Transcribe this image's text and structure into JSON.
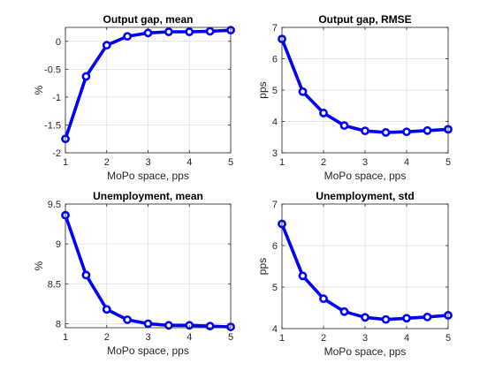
{
  "chart_data": [
    {
      "type": "line",
      "title": "Output gap, mean",
      "xlabel": "MoPo space, pps",
      "ylabel": "%",
      "xlim": [
        1,
        5
      ],
      "ylim": [
        -2,
        0.25
      ],
      "xticks": [
        1,
        2,
        3,
        4,
        5
      ],
      "yticks": [
        -2,
        -1.5,
        -1,
        -0.5,
        0
      ],
      "ytick_labels": [
        "-2",
        "-1.5",
        "-1",
        "-0.5",
        "0"
      ],
      "grid": true,
      "color": "#0000ff",
      "x": [
        1,
        1.5,
        2,
        2.5,
        3,
        3.5,
        4,
        4.5,
        5
      ],
      "values": [
        -1.75,
        -0.63,
        -0.07,
        0.09,
        0.15,
        0.17,
        0.17,
        0.18,
        0.2
      ]
    },
    {
      "type": "line",
      "title": "Output gap, RMSE",
      "xlabel": "MoPo space, pps",
      "ylabel": "pps",
      "xlim": [
        1,
        5
      ],
      "ylim": [
        3,
        7
      ],
      "xticks": [
        1,
        2,
        3,
        4,
        5
      ],
      "yticks": [
        3,
        4,
        5,
        6,
        7
      ],
      "ytick_labels": [
        "3",
        "4",
        "5",
        "6",
        "7"
      ],
      "grid": true,
      "color": "#0000ff",
      "x": [
        1,
        1.5,
        2,
        2.5,
        3,
        3.5,
        4,
        4.5,
        5
      ],
      "values": [
        6.63,
        4.95,
        4.27,
        3.87,
        3.7,
        3.65,
        3.67,
        3.71,
        3.75
      ]
    },
    {
      "type": "line",
      "title": "Unemployment, mean",
      "xlabel": "MoPo space, pps",
      "ylabel": "%",
      "xlim": [
        1,
        5
      ],
      "ylim": [
        7.95,
        9.5
      ],
      "xticks": [
        1,
        2,
        3,
        4,
        5
      ],
      "yticks": [
        8,
        8.5,
        9,
        9.5
      ],
      "ytick_labels": [
        "8",
        "8.5",
        "9",
        "9.5"
      ],
      "grid": true,
      "color": "#0000ff",
      "x": [
        1,
        1.5,
        2,
        2.5,
        3,
        3.5,
        4,
        4.5,
        5
      ],
      "values": [
        9.36,
        8.61,
        8.18,
        8.05,
        8.0,
        7.98,
        7.98,
        7.97,
        7.96
      ]
    },
    {
      "type": "line",
      "title": "Unemployment, std",
      "xlabel": "MoPo space, pps",
      "ylabel": "pps",
      "xlim": [
        1,
        5
      ],
      "ylim": [
        4,
        7
      ],
      "xticks": [
        1,
        2,
        3,
        4,
        5
      ],
      "yticks": [
        4,
        5,
        6,
        7
      ],
      "ytick_labels": [
        "4",
        "5",
        "6",
        "7"
      ],
      "grid": true,
      "color": "#0000ff",
      "x": [
        1,
        1.5,
        2,
        2.5,
        3,
        3.5,
        4,
        4.5,
        5
      ],
      "values": [
        6.52,
        5.27,
        4.72,
        4.41,
        4.27,
        4.22,
        4.25,
        4.28,
        4.32
      ]
    }
  ]
}
